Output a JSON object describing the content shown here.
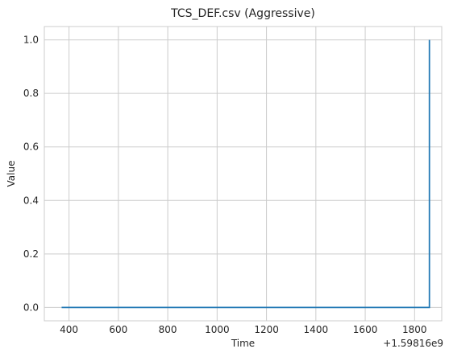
{
  "chart_data": {
    "type": "line",
    "title": "TCS_DEF.csv (Aggressive)",
    "xlabel": "Time",
    "ylabel": "Value",
    "x_offset_label": "+1.59816e9",
    "xlim": [
      300,
      1910
    ],
    "ylim": [
      -0.05,
      1.05
    ],
    "xticks": [
      400,
      600,
      800,
      1000,
      1200,
      1400,
      1600,
      1800
    ],
    "xtick_labels": [
      "400",
      "600",
      "800",
      "1000",
      "1200",
      "1400",
      "1600",
      "1800"
    ],
    "yticks": [
      0.0,
      0.2,
      0.4,
      0.6,
      0.8,
      1.0
    ],
    "ytick_labels": [
      "0.0",
      "0.2",
      "0.4",
      "0.6",
      "0.8",
      "1.0"
    ],
    "grid": true,
    "series": [
      {
        "color": "#1f77b4",
        "x": [
          370,
          1860,
          1860
        ],
        "y": [
          0.0,
          0.0,
          1.0
        ]
      }
    ]
  }
}
